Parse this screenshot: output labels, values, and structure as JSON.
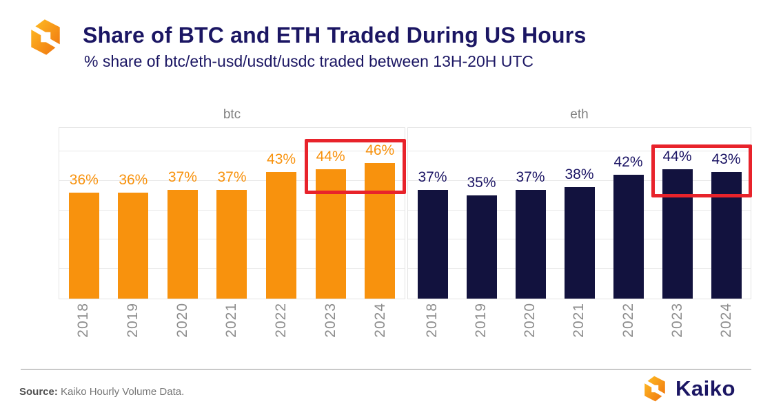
{
  "header": {
    "title": "Share of BTC and ETH Traded During US Hours",
    "subtitle": "% share of btc/eth-usd/usdt/usdc traded between 13H-20H UTC"
  },
  "chart_data": {
    "type": "bar",
    "title": "Share of BTC and ETH Traded During US Hours",
    "subtitle": "% share of btc/eth-usd/usdt/usdc traded between 13H-20H UTC",
    "categories": [
      "2018",
      "2019",
      "2020",
      "2021",
      "2022",
      "2023",
      "2024"
    ],
    "value_suffix": "%",
    "ylim": [
      0,
      58
    ],
    "grid": {
      "horizontal_step": 10,
      "color": "#e7e7e7"
    },
    "legend_position": "none",
    "xlabel": "",
    "ylabel": "",
    "panels": [
      {
        "name": "btc",
        "bar_color": "#f8920d",
        "label_color": "#f8920d",
        "values": [
          36,
          36,
          37,
          37,
          43,
          44,
          46
        ],
        "labels": [
          "36%",
          "36%",
          "37%",
          "37%",
          "43%",
          "44%",
          "46%"
        ],
        "highlight": {
          "from_index": 5,
          "to_index": 6,
          "border_color": "#e8232b",
          "covers": [
            "2023",
            "2024"
          ]
        }
      },
      {
        "name": "eth",
        "bar_color": "#12123e",
        "label_color": "#1b1464",
        "values": [
          37,
          35,
          37,
          38,
          42,
          44,
          43
        ],
        "labels": [
          "37%",
          "35%",
          "37%",
          "38%",
          "42%",
          "44%",
          "43%"
        ],
        "highlight": {
          "from_index": 5,
          "to_index": 6,
          "border_color": "#e8232b",
          "covers": [
            "2023",
            "2024"
          ]
        }
      }
    ]
  },
  "footer": {
    "source_label": "Source:",
    "source_text": "Kaiko  Hourly Volume Data.",
    "brand_name": "Kaiko"
  },
  "colors": {
    "title_navy": "#1b1663",
    "btc_orange": "#f8920d",
    "eth_navy": "#12123e",
    "highlight_red": "#e8232b",
    "axis_gray": "#8c8c8c",
    "panel_title_gray": "#7f7f7f",
    "grid_gray": "#e7e7e7"
  }
}
